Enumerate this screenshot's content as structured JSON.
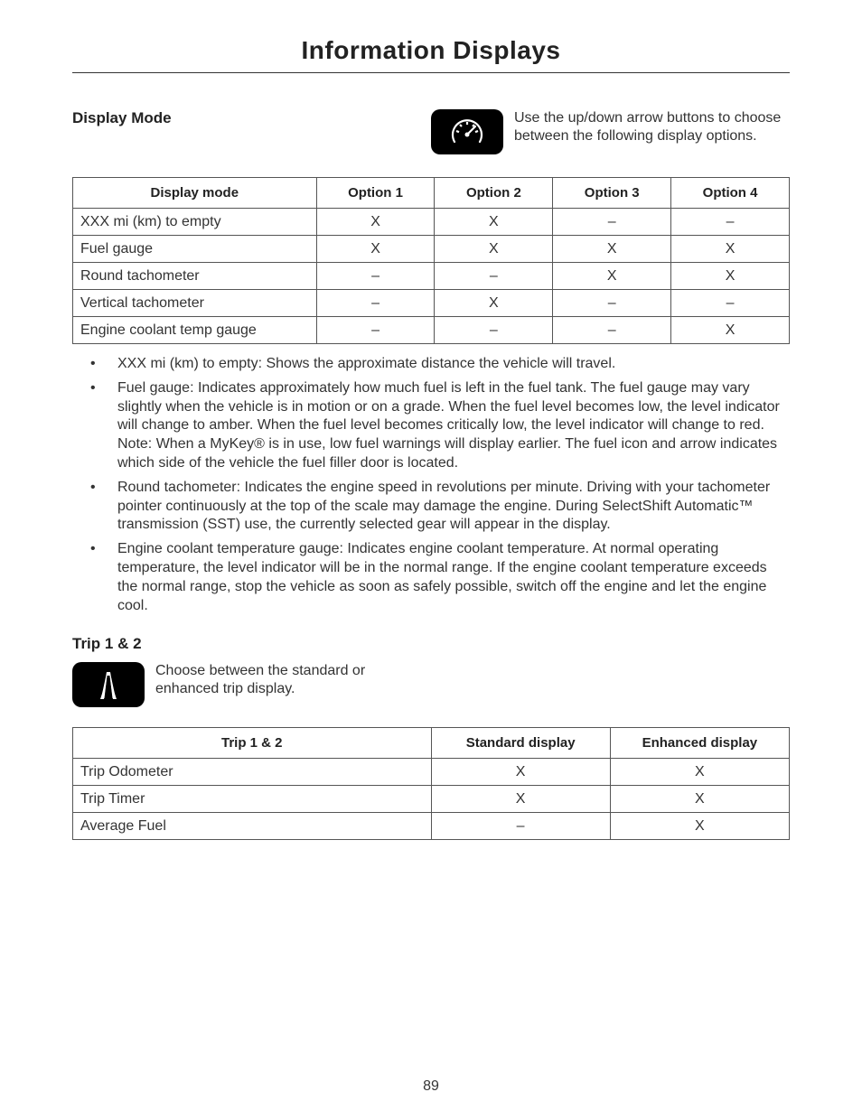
{
  "page_title": "Information Displays",
  "page_number": "89",
  "display_mode": {
    "heading": "Display Mode",
    "icon_name": "gauge-icon",
    "intro_text": "Use the up/down arrow buttons to choose between the following display options.",
    "table": {
      "columns": [
        "Display mode",
        "Option 1",
        "Option 2",
        "Option 3",
        "Option 4"
      ],
      "rows": [
        [
          "XXX mi (km) to empty",
          "X",
          "X",
          "–",
          "–"
        ],
        [
          "Fuel gauge",
          "X",
          "X",
          "X",
          "X"
        ],
        [
          "Round tachometer",
          "–",
          "–",
          "X",
          "X"
        ],
        [
          "Vertical tachometer",
          "–",
          "X",
          "–",
          "–"
        ],
        [
          "Engine coolant temp gauge",
          "–",
          "–",
          "–",
          "X"
        ]
      ],
      "col_widths": [
        "34%",
        "16.5%",
        "16.5%",
        "16.5%",
        "16.5%"
      ]
    },
    "bullets": [
      "XXX mi (km) to empty: Shows the approximate distance the vehicle will travel.",
      "Fuel gauge: Indicates approximately how much fuel is left in the fuel tank. The fuel gauge may vary slightly when the vehicle is in motion or on a grade. When the fuel level becomes low, the level indicator will change to amber. When the fuel level becomes critically low, the level indicator will change to red. Note: When a MyKey® is in use, low fuel warnings will display earlier. The fuel icon and arrow indicates which side of the vehicle the fuel filler door is located.",
      "Round tachometer: Indicates the engine speed in revolutions per minute. Driving with your tachometer pointer continuously at the top of the scale may damage the engine. During SelectShift Automatic™ transmission (SST) use, the currently selected gear will appear in the display.",
      "Engine coolant temperature gauge: Indicates engine coolant temperature. At normal operating temperature, the level indicator will be in the normal range. If the engine coolant temperature exceeds the normal range, stop the vehicle as soon as safely possible, switch off the engine and let the engine cool."
    ]
  },
  "trip": {
    "heading": "Trip 1 & 2",
    "icon_name": "trip-road-icon",
    "intro_text": "Choose between the standard or enhanced trip display.",
    "table": {
      "columns": [
        "Trip 1 & 2",
        "Standard display",
        "Enhanced display"
      ],
      "rows": [
        [
          "Trip Odometer",
          "X",
          "X"
        ],
        [
          "Trip Timer",
          "X",
          "X"
        ],
        [
          "Average Fuel",
          "–",
          "X"
        ]
      ],
      "col_widths": [
        "50%",
        "25%",
        "25%"
      ]
    }
  }
}
